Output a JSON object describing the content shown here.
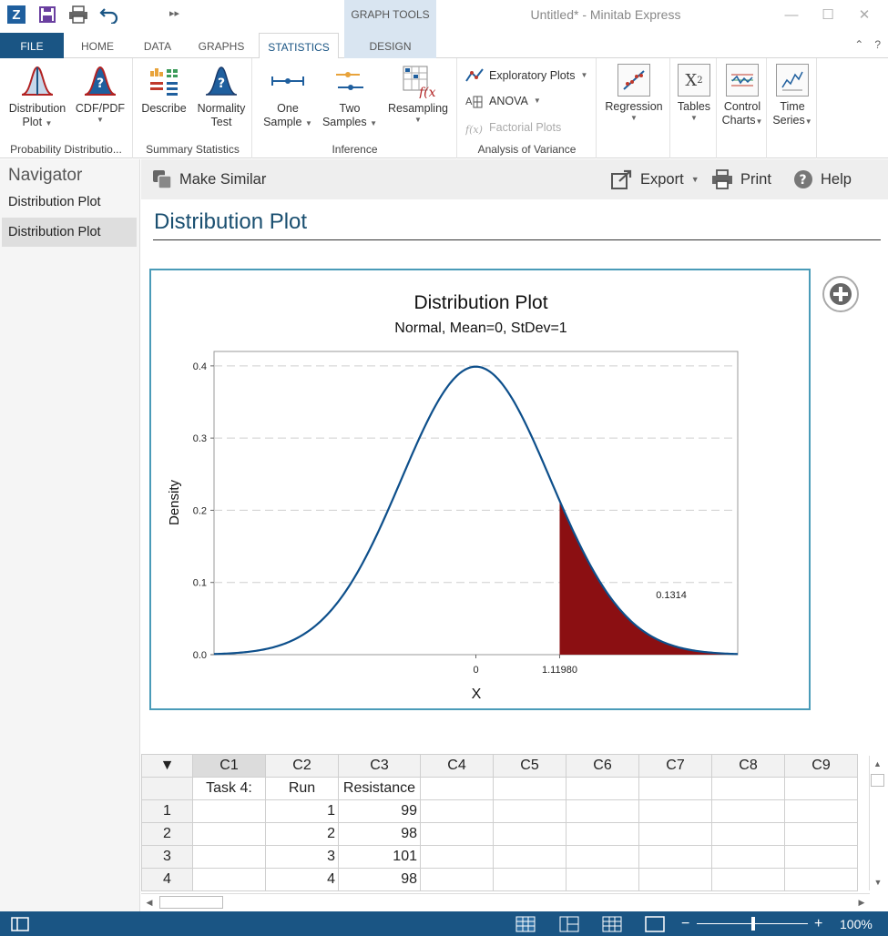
{
  "titlebar": {
    "context_group": "GRAPH TOOLS",
    "window_title": "Untitled* - Minitab Express"
  },
  "tabs": [
    {
      "label": "FILE"
    },
    {
      "label": "HOME"
    },
    {
      "label": "DATA"
    },
    {
      "label": "GRAPHS"
    },
    {
      "label": "STATISTICS"
    },
    {
      "label": "DESIGN"
    }
  ],
  "ribbon": {
    "prob_dist": {
      "label": "Probability Distributio...",
      "distribution_plot": [
        "Distribution",
        "Plot"
      ],
      "cdf_pdf": "CDF/PDF"
    },
    "summary": {
      "label": "Summary Statistics",
      "describe": "Describe",
      "normality": [
        "Normality",
        "Test"
      ]
    },
    "inference": {
      "label": "Inference",
      "one_sample": [
        "One",
        "Sample"
      ],
      "two_samples": [
        "Two",
        "Samples"
      ],
      "resampling": "Resampling"
    },
    "anova": {
      "label": "Analysis of Variance",
      "exploratory": "Exploratory Plots",
      "anova": "ANOVA",
      "factorial": "Factorial Plots"
    },
    "other": {
      "regression": "Regression",
      "tables": "Tables",
      "control_charts": [
        "Control",
        "Charts"
      ],
      "time_series": [
        "Time",
        "Series"
      ]
    }
  },
  "navigator": {
    "title": "Navigator",
    "items": [
      "Distribution Plot",
      "Distribution Plot"
    ]
  },
  "output_toolbar": {
    "make_similar": "Make Similar",
    "export": "Export",
    "print": "Print",
    "help": "Help"
  },
  "output": {
    "title": "Distribution Plot"
  },
  "chart_data": {
    "type": "area",
    "title": "Distribution Plot",
    "subtitle": "Normal, Mean=0, StDev=1",
    "xlabel": "X",
    "ylabel": "Density",
    "distribution": {
      "family": "Normal",
      "mean": 0,
      "stdev": 1
    },
    "xlim": [
      -3.5,
      3.5
    ],
    "ylim": [
      0,
      0.42
    ],
    "yticks": [
      0.0,
      0.1,
      0.2,
      0.3,
      0.4
    ],
    "ytick_labels": [
      "0.0",
      "0.1",
      "0.2",
      "0.3",
      "0.4"
    ],
    "xticks": [
      0,
      1.1198
    ],
    "xtick_labels": [
      "0",
      "1.11980"
    ],
    "shaded_region": {
      "from": 1.1198,
      "to": 3.5,
      "area": 0.1314,
      "area_label": "0.1314"
    },
    "grid": "horizontal dashed",
    "line_color": "#0d4f8b",
    "fill_color": "#8b0f12"
  },
  "worksheet": {
    "columns": [
      "C1",
      "C2",
      "C3",
      "C4",
      "C5",
      "C6",
      "C7",
      "C8",
      "C9"
    ],
    "column_names": [
      "Task 4:",
      "Run",
      "Resistance",
      "",
      "",
      "",
      "",
      "",
      ""
    ],
    "rows": [
      {
        "num": "1",
        "cells": [
          "",
          "1",
          "99"
        ]
      },
      {
        "num": "2",
        "cells": [
          "",
          "2",
          "98"
        ]
      },
      {
        "num": "3",
        "cells": [
          "",
          "3",
          "101"
        ]
      },
      {
        "num": "4",
        "cells": [
          "",
          "4",
          "98"
        ]
      }
    ]
  },
  "statusbar": {
    "zoom": "100%"
  }
}
